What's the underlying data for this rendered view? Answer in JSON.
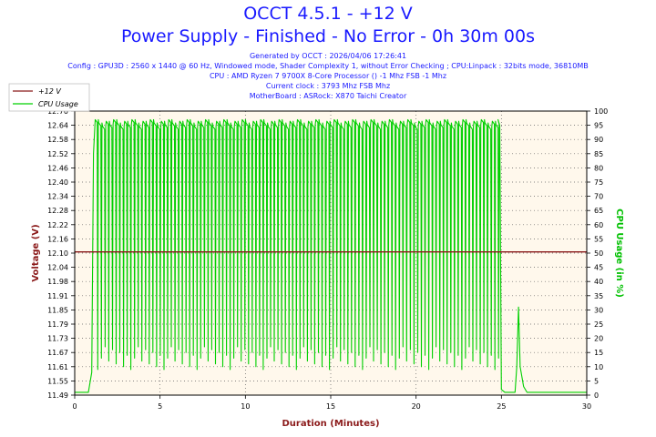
{
  "header": {
    "title": "OCCT 4.5.1 - +12 V",
    "subtitle": "Power Supply - Finished - No Error - 0h 30m 00s",
    "generated": "Generated by OCCT : 2026/04/06 17:26:41",
    "config": "Config : GPU3D : 2560 x 1440 @ 60 Hz, Windowed mode, Shader Complexity 1, without Error Checking ; CPU:Linpack : 32bits mode, 36810MB",
    "cpu": "CPU : AMD Ryzen 7 9700X 8-Core Processor () -1 Mhz FSB -1 Mhz",
    "clock": "Current clock : 3793 Mhz FSB  Mhz",
    "motherboard": "MotherBoard : ASRock: X870 Taichi Creator"
  },
  "colors": {
    "voltage": "#8b1a1a",
    "usage": "#00d000",
    "title": "#1a1aff",
    "plot_bg": "#fff8ec",
    "grid": "#606060"
  },
  "chart_data": {
    "type": "line",
    "xlabel": "Duration (Minutes)",
    "ylabel_left": "Voltage (V)",
    "ylabel_right": "CPU Usage (in %)",
    "xlim": [
      0,
      30
    ],
    "ylim_left": [
      11.49,
      12.7
    ],
    "ylim_right": [
      0,
      100
    ],
    "x_ticks": [
      0,
      5,
      10,
      15,
      20,
      25,
      30
    ],
    "y_ticks_left": [
      "11.49",
      "11.55",
      "11.61",
      "11.67",
      "11.73",
      "11.79",
      "11.85",
      "11.91",
      "11.98",
      "12.04",
      "12.10",
      "12.16",
      "12.22",
      "12.28",
      "12.34",
      "12.40",
      "12.46",
      "12.52",
      "12.58",
      "12.64",
      "12.70"
    ],
    "y_ticks_right": [
      0,
      5,
      10,
      15,
      20,
      25,
      30,
      35,
      40,
      45,
      50,
      55,
      60,
      65,
      70,
      75,
      80,
      85,
      90,
      95,
      100
    ],
    "grid": true,
    "legend_position": "top-left",
    "series": [
      {
        "name": "+12 V",
        "axis": "left",
        "x": [
          0,
          30
        ],
        "y": [
          12.1,
          12.1
        ]
      },
      {
        "name": "CPU Usage",
        "axis": "right",
        "x": [
          0,
          0.8,
          1.0,
          1.1,
          1.2,
          24.8,
          24.9,
          25.0,
          25.2,
          25.8,
          25.9,
          26.0,
          26.1,
          26.3,
          26.5,
          30
        ],
        "y": [
          1,
          1,
          8,
          85,
          97,
          97,
          95,
          2,
          1,
          1,
          10,
          31,
          10,
          3,
          1,
          1
        ],
        "pattern": {
          "x_start": 1.2,
          "x_end": 24.9,
          "high": 97,
          "low": 12,
          "cycles": 110
        }
      }
    ]
  }
}
